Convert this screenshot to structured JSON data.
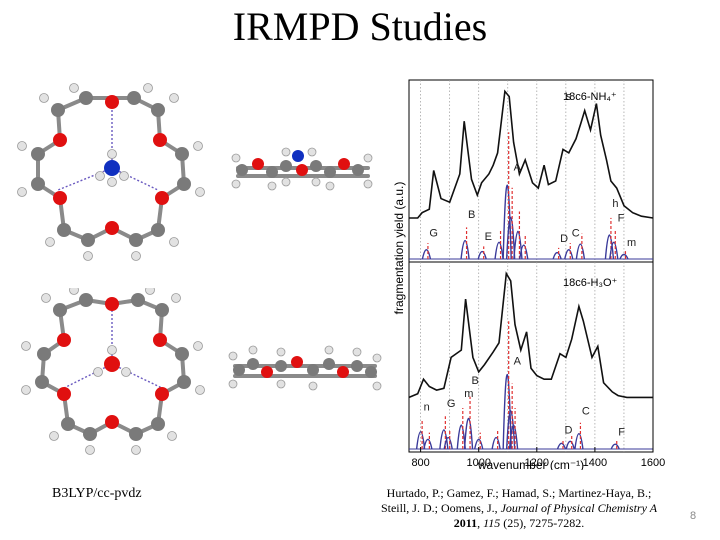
{
  "slide": {
    "title": "IRMPD Studies",
    "method_label": "B3LYP/cc-pvdz",
    "page_number": "8"
  },
  "citation": {
    "authors": "Hurtado, P.; Gamez, F.; Hamad, S.; Martinez-Haya, B.; Steill, J. D.; Oomens, J.,",
    "journal": "Journal of Physical Chemistry A",
    "year": "2011",
    "volume": "115",
    "issue_pages": "(25), 7275-7282."
  },
  "colors": {
    "experiment": "#111111",
    "computed_blue": "#3a3a9a",
    "computed_red": "#e03030",
    "oxygen": "#e01010",
    "nitrogen": "#1030c0",
    "carbon": "#7a7a7a",
    "hydrogen": "#e2e2e2"
  },
  "chart_data": {
    "type": "line",
    "ylabel": "fragmentation yield (a.u.)",
    "xlabel": "wavenumber (cm⁻¹)",
    "xticks": [
      "800",
      "1000",
      "1200",
      "1400",
      "1600"
    ],
    "xlim": [
      760,
      1600
    ],
    "grid": "dotted vertical lines",
    "panels": [
      {
        "label": "18c6-NH₄⁺",
        "band_labels": [
          "s",
          "A",
          "G",
          "B",
          "E",
          "D",
          "C",
          "h",
          "F",
          "m"
        ],
        "experimental": {
          "x": [
            760,
            790,
            805,
            830,
            845,
            870,
            900,
            935,
            950,
            975,
            995,
            1010,
            1035,
            1050,
            1065,
            1090,
            1105,
            1120,
            1140,
            1160,
            1185,
            1205,
            1225,
            1240,
            1265,
            1290,
            1310,
            1335,
            1350,
            1365,
            1385,
            1405,
            1420,
            1440,
            1455,
            1475,
            1500,
            1530,
            1560,
            1600
          ],
          "y": [
            0.25,
            0.25,
            0.28,
            0.3,
            0.52,
            0.36,
            0.34,
            0.5,
            0.8,
            0.47,
            0.38,
            0.45,
            0.5,
            0.55,
            0.62,
            0.97,
            0.94,
            0.68,
            0.5,
            0.58,
            0.45,
            0.42,
            0.55,
            0.44,
            0.46,
            0.64,
            0.62,
            0.7,
            0.78,
            0.86,
            0.75,
            0.9,
            0.72,
            0.58,
            0.46,
            0.42,
            0.32,
            0.28,
            0.26,
            0.25
          ]
        },
        "computed_sticks": [
          {
            "x": 820,
            "y": 0.1
          },
          {
            "x": 953,
            "y": 0.2
          },
          {
            "x": 1012,
            "y": 0.08
          },
          {
            "x": 1070,
            "y": 0.18
          },
          {
            "x": 1098,
            "y": 0.8
          },
          {
            "x": 1110,
            "y": 0.45
          },
          {
            "x": 1135,
            "y": 0.3
          },
          {
            "x": 1155,
            "y": 0.15
          },
          {
            "x": 1270,
            "y": 0.07
          },
          {
            "x": 1310,
            "y": 0.1
          },
          {
            "x": 1350,
            "y": 0.16
          },
          {
            "x": 1450,
            "y": 0.26
          },
          {
            "x": 1465,
            "y": 0.18
          },
          {
            "x": 1500,
            "y": 0.05
          }
        ]
      },
      {
        "label": "18c6-H₃O⁺",
        "band_labels": [
          "n",
          "G",
          "m",
          "B",
          "A",
          "D",
          "C",
          "F"
        ],
        "experimental": {
          "x": [
            760,
            790,
            810,
            830,
            855,
            880,
            905,
            940,
            955,
            980,
            1000,
            1020,
            1050,
            1070,
            1095,
            1110,
            1125,
            1145,
            1165,
            1180,
            1200,
            1225,
            1250,
            1280,
            1300,
            1320,
            1345,
            1360,
            1390,
            1410,
            1430,
            1460,
            1480,
            1510,
            1550,
            1600
          ],
          "y": [
            0.3,
            0.32,
            0.4,
            0.36,
            0.34,
            0.35,
            0.52,
            0.56,
            0.84,
            0.52,
            0.44,
            0.48,
            0.55,
            0.6,
            0.98,
            0.94,
            0.7,
            0.56,
            0.66,
            0.46,
            0.42,
            0.4,
            0.4,
            0.54,
            0.52,
            0.62,
            0.8,
            0.72,
            0.52,
            0.58,
            0.38,
            0.33,
            0.31,
            0.3,
            0.3,
            0.3
          ]
        },
        "computed_sticks": [
          {
            "x": 800,
            "y": 0.18
          },
          {
            "x": 825,
            "y": 0.1
          },
          {
            "x": 880,
            "y": 0.2
          },
          {
            "x": 895,
            "y": 0.12
          },
          {
            "x": 940,
            "y": 0.25
          },
          {
            "x": 965,
            "y": 0.32
          },
          {
            "x": 1000,
            "y": 0.1
          },
          {
            "x": 1060,
            "y": 0.12
          },
          {
            "x": 1098,
            "y": 0.78
          },
          {
            "x": 1110,
            "y": 0.4
          },
          {
            "x": 1120,
            "y": 0.25
          },
          {
            "x": 1285,
            "y": 0.06
          },
          {
            "x": 1315,
            "y": 0.08
          },
          {
            "x": 1345,
            "y": 0.16
          },
          {
            "x": 1470,
            "y": 0.05
          }
        ]
      }
    ]
  }
}
